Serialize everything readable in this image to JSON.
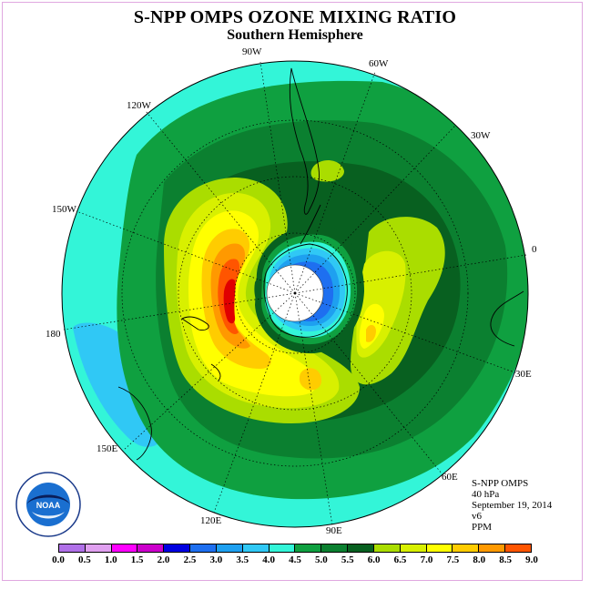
{
  "title": "S-NPP OMPS OZONE MIXING RATIO",
  "subtitle": "Southern Hemisphere",
  "longitude_labels": [
    "90W",
    "60W",
    "120W",
    "30W",
    "150W",
    "0",
    "180",
    "30E",
    "150E",
    "60E",
    "120E",
    "90E"
  ],
  "info": {
    "instrument": "S-NPP OMPS",
    "pressure": "40 hPa",
    "date": "September 19, 2014",
    "version": "v6",
    "units": "PPM"
  },
  "logo": {
    "text": "NOAA",
    "ring_text": "NATIONAL OCEANIC AND ATMOSPHERIC ADMINISTRATION · U.S. DEPARTMENT OF COMMERCE"
  },
  "colorbar": {
    "tick_labels": [
      "0.0",
      "0.5",
      "1.0",
      "1.5",
      "2.0",
      "2.5",
      "3.0",
      "3.5",
      "4.0",
      "4.5",
      "5.0",
      "5.5",
      "6.0",
      "6.5",
      "7.0",
      "7.5",
      "8.0",
      "8.5",
      "9.0"
    ],
    "colors": [
      "#b070e8",
      "#e0a0f0",
      "#ff00ff",
      "#cc00cc",
      "#0000e0",
      "#1e6ff0",
      "#1ea0f0",
      "#30c8f5",
      "#33f5d8",
      "#0fa040",
      "#0b8030",
      "#086020",
      "#aadd00",
      "#d8f000",
      "#ffff00",
      "#ffcc00",
      "#ff9900",
      "#ff5500",
      "#e00000",
      "#805030"
    ]
  },
  "colors": {
    "frame": "#e0a8e0",
    "background": "#ffffff"
  }
}
